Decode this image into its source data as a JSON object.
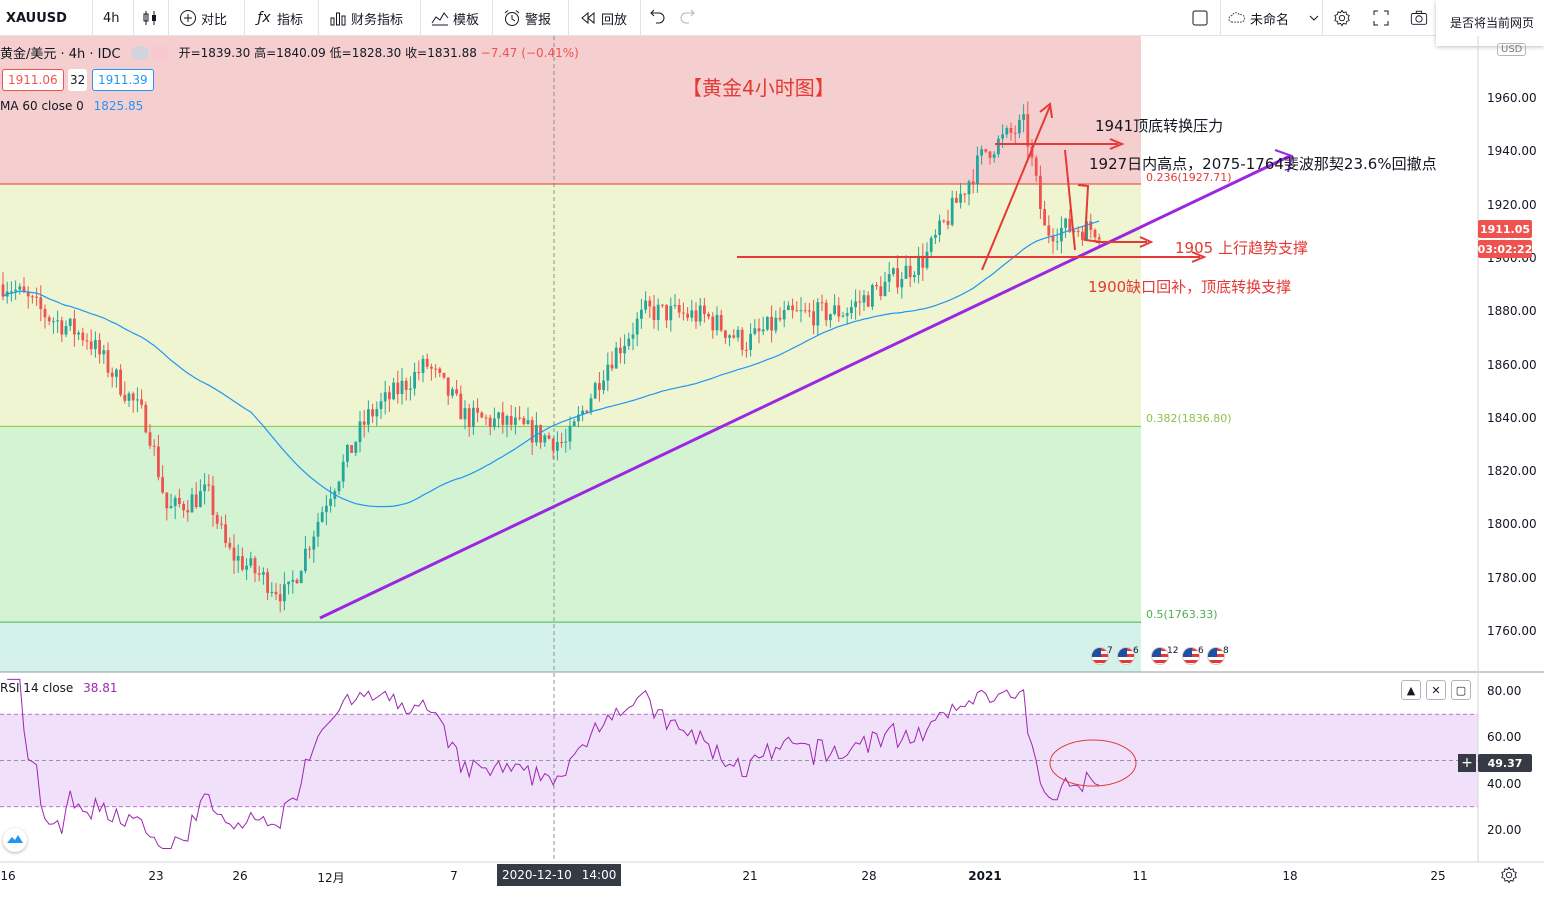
{
  "toolbar": {
    "symbol": "XAUUSD",
    "interval": "4h",
    "compare_label": "对比",
    "indicators_label": "指标",
    "financials_label": "财务指标",
    "templates_label": "模板",
    "alert_label": "警报",
    "replay_label": "回放",
    "layout_name": "未命名"
  },
  "popup_text": "是否将当前网页",
  "legend": {
    "symbol_line": "黄金/美元 · 4h · IDC",
    "open": "开=1839.30",
    "high": "高=1840.09",
    "low": "低=1828.30",
    "close": "收=1831.88",
    "change": "−7.47 (−0.41%)",
    "bid": "1911.06",
    "spread": "32",
    "ask": "1911.39",
    "ma_label": "MA 60 close 0",
    "ma_value": "1825.85",
    "rsi_label": "RSI 14 close",
    "rsi_value": "38.81"
  },
  "annotations": {
    "title": "【黄金4小时图】",
    "a1941": "1941顶底转换压力",
    "a1927": "1927日内高点，2075-1764斐波那契23.6%回撤点",
    "a1905": "1905  上行趋势支撑",
    "a1900": "1900缺口回补，顶底转换支撑"
  },
  "fib_levels": [
    {
      "label": "0.236(1927.71)",
      "value": 1927.71,
      "color": "#e53935"
    },
    {
      "label": "0.382(1836.80)",
      "value": 1836.8,
      "color": "#8bc34a"
    },
    {
      "label": "0.5(1763.33)",
      "value": 1763.33,
      "color": "#4caf50"
    }
  ],
  "price_scale": {
    "currency": "USD",
    "ticks": [
      "1960.00",
      "1940.00",
      "1920.00",
      "1900.00",
      "1880.00",
      "1860.00",
      "1840.00",
      "1820.00",
      "1800.00",
      "1780.00",
      "1760.00"
    ],
    "last_price": "1911.05",
    "countdown": "03:02:22"
  },
  "rsi_scale": {
    "ticks": [
      "80.00",
      "60.00",
      "40.00",
      "20.00"
    ],
    "cursor_value": "49.37"
  },
  "time_axis": {
    "labels": [
      "16",
      "23",
      "26",
      "12月",
      "7",
      "21",
      "28",
      "2021",
      "11",
      "18",
      "25"
    ],
    "cursor_date": "2020-12-10",
    "cursor_time": "14:00"
  },
  "events": [
    {
      "count": "7"
    },
    {
      "count": "6"
    },
    {
      "count": "12"
    },
    {
      "count": "6"
    },
    {
      "count": "8"
    }
  ],
  "colors": {
    "up": "#26a69a",
    "down": "#ef5350",
    "ma": "#2196f3",
    "rsi": "#9c27b0",
    "trend": "#9c27e0",
    "arrows": "#e53935"
  },
  "chart_data": {
    "type": "candlestick",
    "symbol": "XAUUSD",
    "interval": "4h",
    "ylim": [
      1745,
      1975
    ],
    "close_path": [
      {
        "x": "2020-11-16",
        "y": 1890
      },
      {
        "x": "2020-11-18",
        "y": 1878
      },
      {
        "x": "2020-11-20",
        "y": 1870
      },
      {
        "x": "2020-11-23",
        "y": 1838
      },
      {
        "x": "2020-11-24",
        "y": 1805
      },
      {
        "x": "2020-11-26",
        "y": 1812
      },
      {
        "x": "2020-11-27",
        "y": 1790
      },
      {
        "x": "2020-11-30",
        "y": 1773
      },
      {
        "x": "2020-12-02",
        "y": 1810
      },
      {
        "x": "2020-12-04",
        "y": 1840
      },
      {
        "x": "2020-12-07",
        "y": 1860
      },
      {
        "x": "2020-12-09",
        "y": 1840
      },
      {
        "x": "2020-12-11",
        "y": 1838
      },
      {
        "x": "2020-12-14",
        "y": 1830
      },
      {
        "x": "2020-12-16",
        "y": 1860
      },
      {
        "x": "2020-12-18",
        "y": 1880
      },
      {
        "x": "2020-12-21",
        "y": 1878
      },
      {
        "x": "2020-12-23",
        "y": 1868
      },
      {
        "x": "2020-12-25",
        "y": 1878
      },
      {
        "x": "2020-12-28",
        "y": 1880
      },
      {
        "x": "2020-12-30",
        "y": 1890
      },
      {
        "x": "2021-01-01",
        "y": 1900
      },
      {
        "x": "2021-01-04",
        "y": 1940
      },
      {
        "x": "2021-01-06",
        "y": 1950
      },
      {
        "x": "2021-01-07",
        "y": 1910
      },
      {
        "x": "2021-01-08",
        "y": 1911
      }
    ],
    "ma60": {
      "label": "MA 60 close 0",
      "last": 1825.85
    },
    "rsi14": {
      "label": "RSI 14 close",
      "last": 38.81,
      "bands": [
        30,
        70
      ]
    }
  }
}
